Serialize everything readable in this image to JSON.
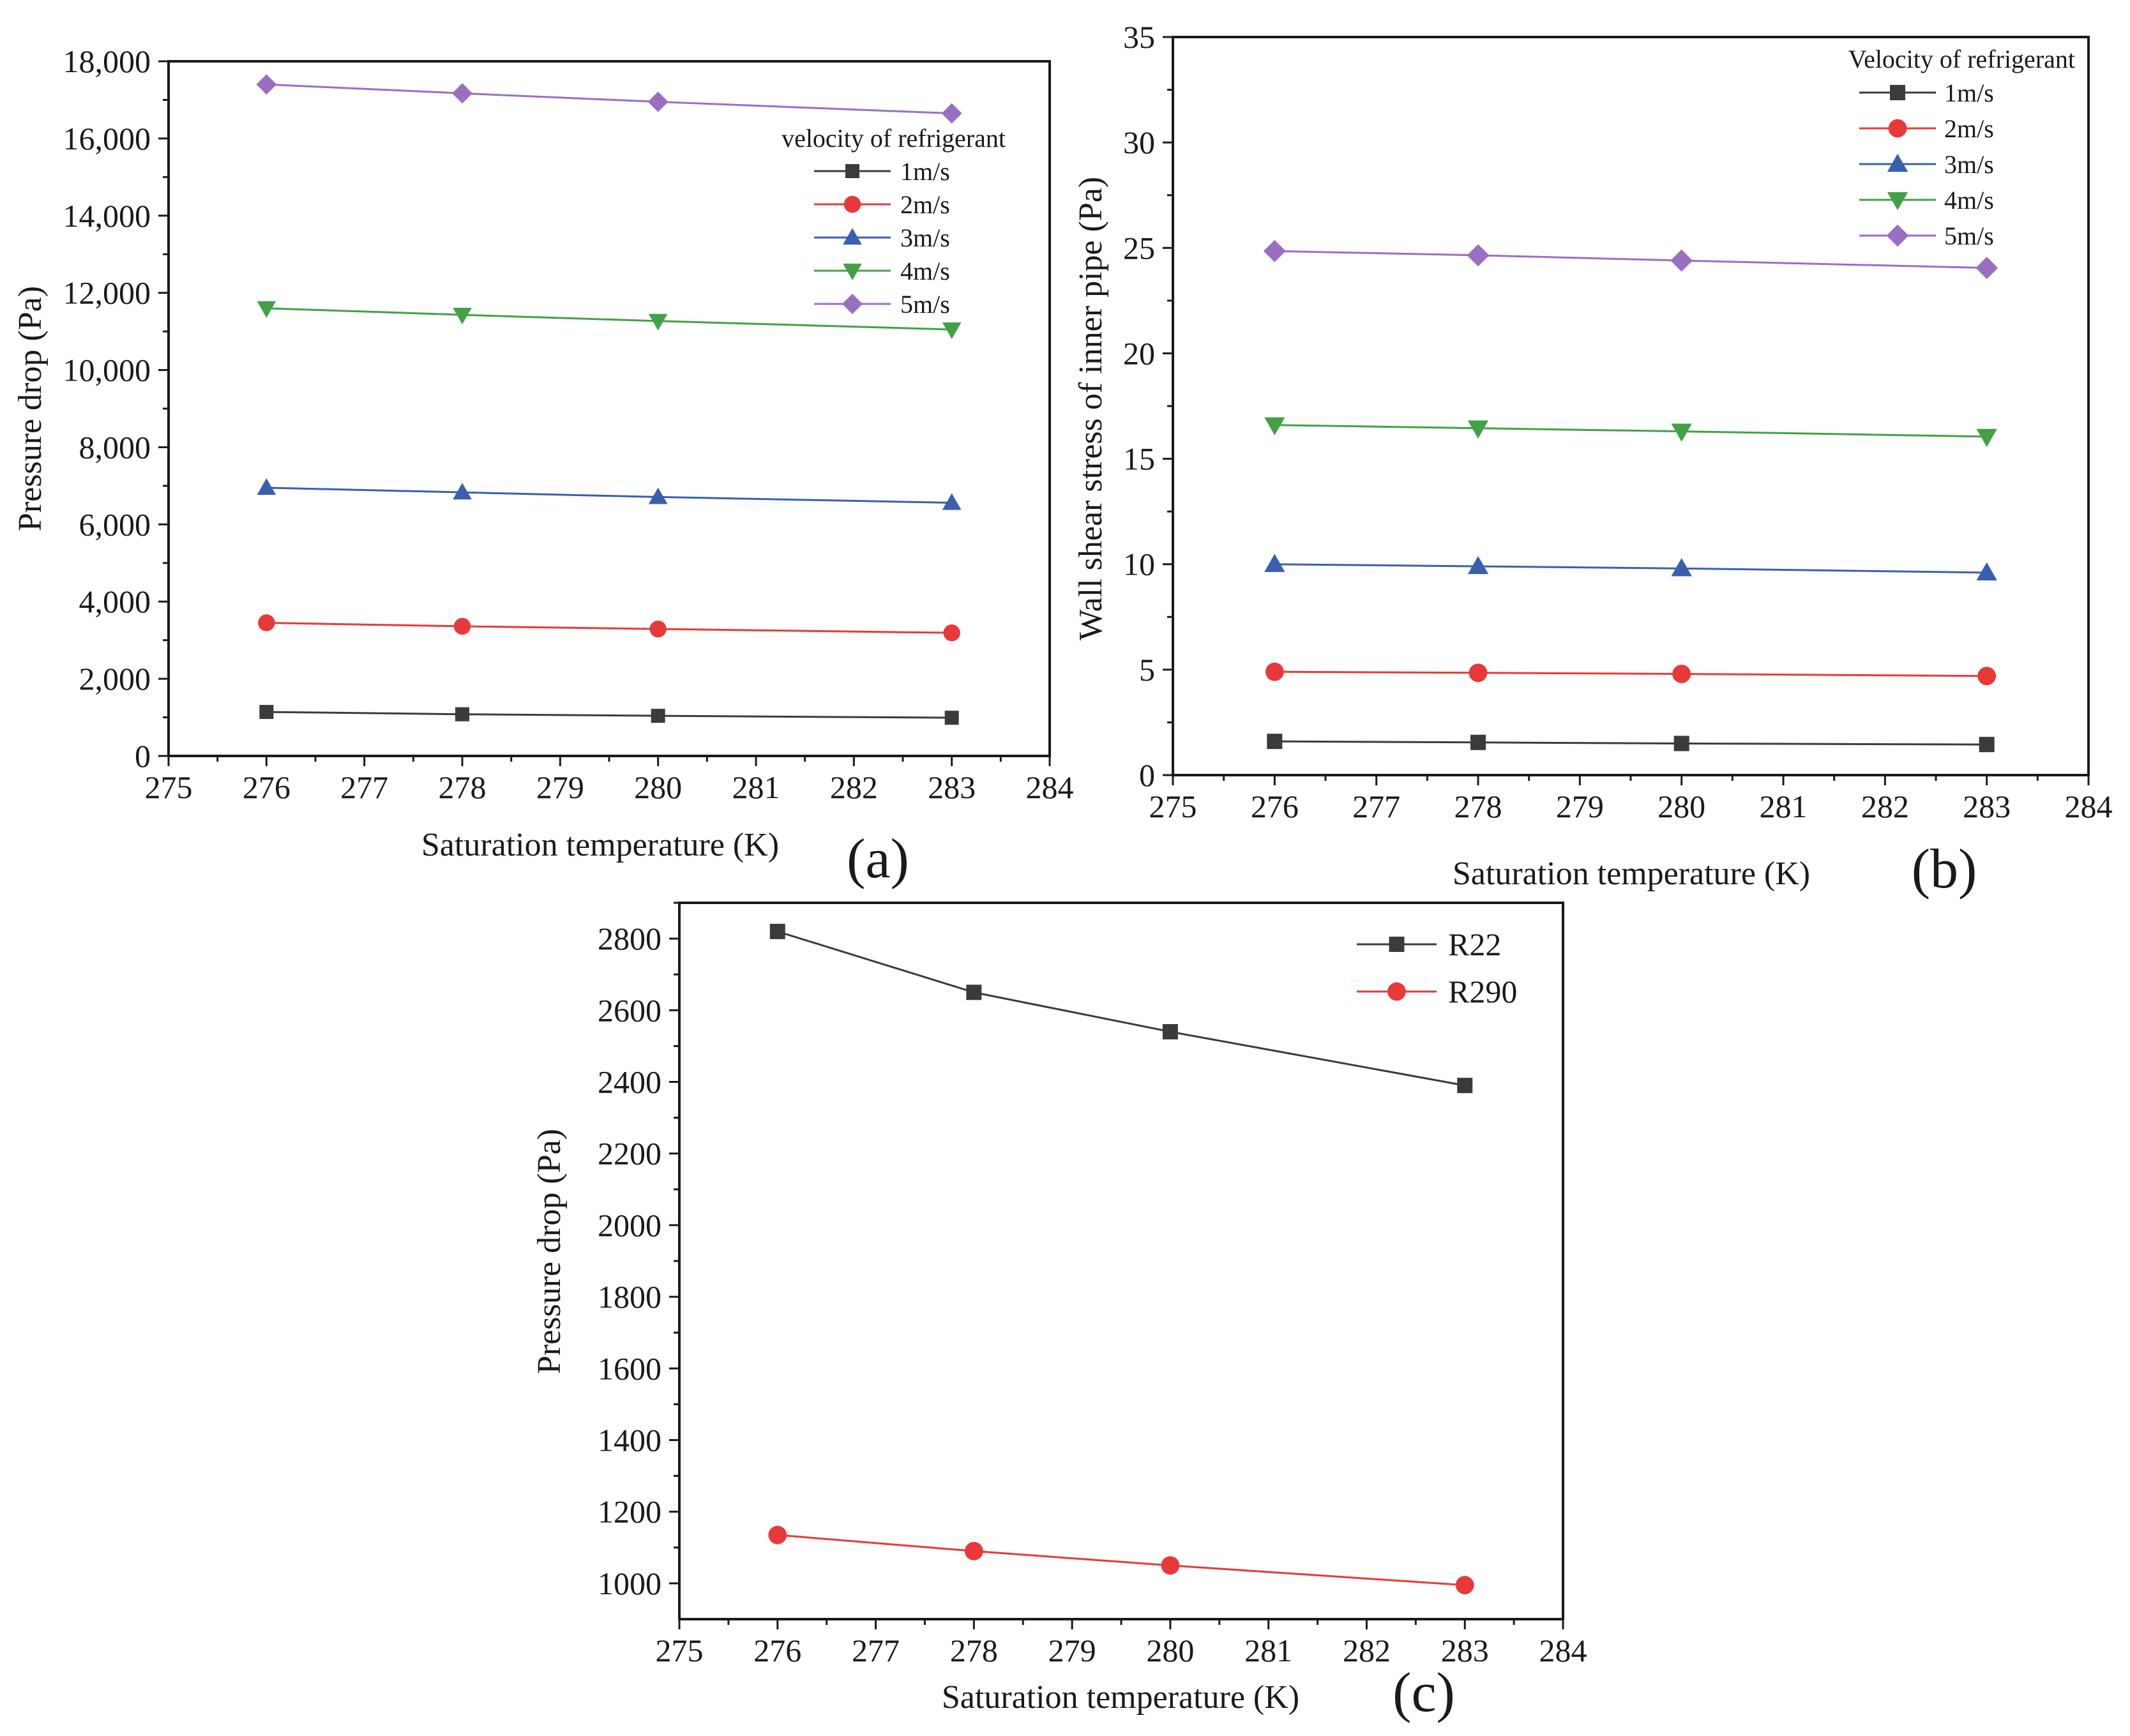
{
  "colors": {
    "1m/s": "#3b3b3b",
    "2m/s": "#e8393a",
    "3m/s": "#3a5fae",
    "4m/s": "#43a047",
    "5m/s": "#9a6fc2",
    "R22": "#3b3b3b",
    "R290": "#e8393a"
  },
  "chart_data": [
    {
      "panel": "(a)",
      "type": "line",
      "xlabel": "Saturation temperature (K)",
      "ylabel": "Pressure drop (Pa)",
      "xlim": [
        275,
        284
      ],
      "ylim": [
        0,
        18000
      ],
      "xticks": [
        "275",
        "276",
        "277",
        "278",
        "279",
        "280",
        "281",
        "282",
        "283",
        "284"
      ],
      "yticks": [
        "0",
        "2,000",
        "4,000",
        "6,000",
        "8,000",
        "10,000",
        "12,000",
        "14,000",
        "16,000",
        "18,000"
      ],
      "legend_title": "velocity of refrigerant",
      "legend_position": "top-right",
      "x": [
        276,
        278,
        280,
        283
      ],
      "series": [
        {
          "name": "1m/s",
          "marker": "square",
          "values": [
            1140,
            1080,
            1040,
            990
          ]
        },
        {
          "name": "2m/s",
          "marker": "circle",
          "values": [
            3450,
            3360,
            3290,
            3190
          ]
        },
        {
          "name": "3m/s",
          "marker": "triangle-up",
          "values": [
            6950,
            6830,
            6710,
            6560
          ]
        },
        {
          "name": "4m/s",
          "marker": "triangle-down",
          "values": [
            11600,
            11430,
            11270,
            11050
          ]
        },
        {
          "name": "5m/s",
          "marker": "diamond",
          "values": [
            17400,
            17170,
            16950,
            16650
          ]
        }
      ]
    },
    {
      "panel": "(b)",
      "type": "line",
      "xlabel": "Saturation temperature (K)",
      "ylabel": "Wall shear stress of inner pipe (Pa)",
      "xlim": [
        275,
        284
      ],
      "ylim": [
        0,
        35
      ],
      "xticks": [
        "275",
        "276",
        "277",
        "278",
        "279",
        "280",
        "281",
        "282",
        "283",
        "284"
      ],
      "yticks": [
        "0",
        "5",
        "10",
        "15",
        "20",
        "25",
        "30",
        "35"
      ],
      "legend_title": "Velocity of refrigerant",
      "legend_position": "top-right",
      "x": [
        276,
        278,
        280,
        283
      ],
      "series": [
        {
          "name": "1m/s",
          "marker": "square",
          "values": [
            1.6,
            1.55,
            1.5,
            1.45
          ]
        },
        {
          "name": "2m/s",
          "marker": "circle",
          "values": [
            4.9,
            4.85,
            4.8,
            4.7
          ]
        },
        {
          "name": "3m/s",
          "marker": "triangle-up",
          "values": [
            10.0,
            9.9,
            9.8,
            9.6
          ]
        },
        {
          "name": "4m/s",
          "marker": "triangle-down",
          "values": [
            16.6,
            16.45,
            16.3,
            16.05
          ]
        },
        {
          "name": "5m/s",
          "marker": "diamond",
          "values": [
            24.85,
            24.65,
            24.4,
            24.05
          ]
        }
      ]
    },
    {
      "panel": "(c)",
      "type": "line",
      "xlabel": "Saturation temperature (K)",
      "ylabel": "Pressure drop (Pa)",
      "xlim": [
        275,
        284
      ],
      "ylim": [
        900,
        2900
      ],
      "xticks": [
        "275",
        "276",
        "277",
        "278",
        "279",
        "280",
        "281",
        "282",
        "283",
        "284"
      ],
      "yticks": [
        "1000",
        "1200",
        "1400",
        "1600",
        "1800",
        "2000",
        "2200",
        "2400",
        "2600",
        "2800"
      ],
      "legend_title": "",
      "legend_position": "top-right",
      "x": [
        276,
        278,
        280,
        283
      ],
      "series": [
        {
          "name": "R22",
          "marker": "square",
          "values": [
            2820,
            2650,
            2540,
            2390
          ]
        },
        {
          "name": "R290",
          "marker": "circle",
          "values": [
            1135,
            1090,
            1050,
            995
          ]
        }
      ]
    }
  ]
}
